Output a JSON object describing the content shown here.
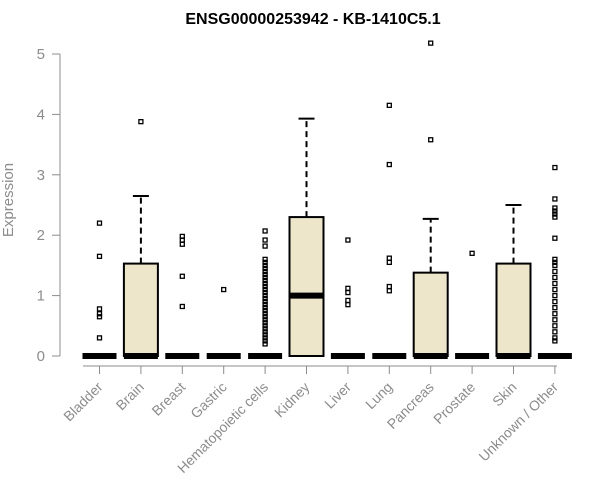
{
  "chart_data": {
    "type": "boxplot",
    "title": "ENSG00000253942 - KB-1410C5.1",
    "xlabel": "",
    "ylabel": "Expression",
    "ylim": [
      0,
      5
    ],
    "yticks": [
      "0",
      "1",
      "2",
      "3",
      "4",
      "5"
    ],
    "grid": false,
    "box_fill": "#ede6cb",
    "categories": [
      "Bladder",
      "Brain",
      "Breast",
      "Gastric",
      "Hematopoietic cells",
      "Kidney",
      "Liver",
      "Lung",
      "Pancreas",
      "Prostate",
      "Skin",
      "Unknown / Other"
    ],
    "boxes": [
      {
        "q1": 0,
        "median": 0,
        "q3": 0,
        "whisker_low": 0,
        "whisker_high": 0,
        "outliers": [
          2.2,
          1.65,
          0.78,
          0.7,
          0.65,
          0.3
        ]
      },
      {
        "q1": 0,
        "median": 0,
        "q3": 1.53,
        "whisker_low": 0,
        "whisker_high": 2.65,
        "outliers": [
          3.88
        ]
      },
      {
        "q1": 0,
        "median": 0,
        "q3": 0,
        "whisker_low": 0,
        "whisker_high": 0,
        "outliers": [
          1.98,
          1.92,
          1.85,
          1.32,
          0.82
        ]
      },
      {
        "q1": 0,
        "median": 0,
        "q3": 0,
        "whisker_low": 0,
        "whisker_high": 0,
        "outliers": [
          1.1
        ]
      },
      {
        "q1": 0,
        "median": 0,
        "q3": 0,
        "whisker_low": 0,
        "whisker_high": 0,
        "outliers": [
          2.07,
          1.92,
          1.82,
          1.6,
          1.55,
          1.5,
          1.45,
          1.4,
          1.35,
          1.3,
          1.25,
          1.2,
          1.15,
          1.1,
          1.05,
          1.0,
          0.95,
          0.9,
          0.85,
          0.8,
          0.75,
          0.7,
          0.65,
          0.6,
          0.55,
          0.5,
          0.45,
          0.4,
          0.35,
          0.3,
          0.25,
          0.2
        ]
      },
      {
        "q1": 0,
        "median": 1.0,
        "q3": 2.3,
        "whisker_low": 0,
        "whisker_high": 3.93,
        "outliers": []
      },
      {
        "q1": 0,
        "median": 0,
        "q3": 0,
        "whisker_low": 0,
        "whisker_high": 0,
        "outliers": [
          1.92,
          1.12,
          1.05,
          0.92,
          0.85
        ]
      },
      {
        "q1": 0,
        "median": 0,
        "q3": 0,
        "whisker_low": 0,
        "whisker_high": 0,
        "outliers": [
          4.15,
          3.17,
          1.62,
          1.55,
          1.15,
          1.08
        ]
      },
      {
        "q1": 0,
        "median": 0,
        "q3": 1.38,
        "whisker_low": 0,
        "whisker_high": 2.27,
        "outliers": [
          5.18,
          3.58
        ]
      },
      {
        "q1": 0,
        "median": 0,
        "q3": 0,
        "whisker_low": 0,
        "whisker_high": 0,
        "outliers": [
          1.7
        ]
      },
      {
        "q1": 0,
        "median": 0,
        "q3": 1.53,
        "whisker_low": 0,
        "whisker_high": 2.5,
        "outliers": []
      },
      {
        "q1": 0,
        "median": 0,
        "q3": 0,
        "whisker_low": 0,
        "whisker_high": 0,
        "outliers": [
          3.12,
          2.6,
          2.45,
          2.4,
          2.35,
          2.3,
          1.95,
          1.6,
          1.55,
          1.5,
          1.4,
          1.3,
          1.2,
          1.1,
          1.0,
          0.9,
          0.8,
          0.7,
          0.6,
          0.5,
          0.4,
          0.3,
          0.25
        ]
      }
    ]
  }
}
